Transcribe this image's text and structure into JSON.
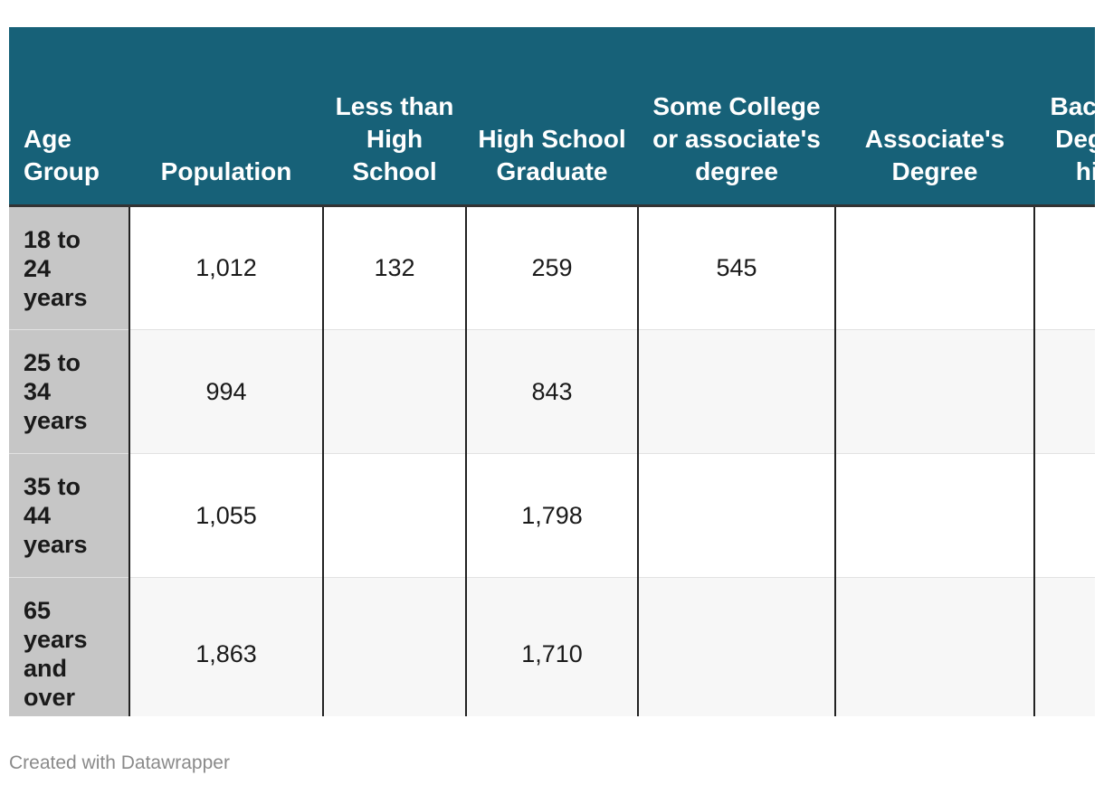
{
  "chart_data": {
    "type": "table",
    "columns": [
      "Age Group",
      "Population",
      "Less than High School",
      "High School Graduate",
      "Some College or associate's degree",
      "Associate's Degree",
      "Bachelor's Degree or higher"
    ],
    "rows": [
      {
        "age_group": "18 to 24 years",
        "cells": [
          "1,012",
          "132",
          "259",
          "545",
          "",
          ""
        ]
      },
      {
        "age_group": "25 to 34 years",
        "cells": [
          "994",
          "",
          "843",
          "",
          "",
          ""
        ]
      },
      {
        "age_group": "35 to 44 years",
        "cells": [
          "1,055",
          "",
          "1,798",
          "",
          "",
          ""
        ]
      },
      {
        "age_group": "65 years and over",
        "cells": [
          "1,863",
          "",
          "1,710",
          "",
          "",
          ""
        ]
      }
    ]
  },
  "footer": {
    "credit": "Created with Datawrapper"
  }
}
